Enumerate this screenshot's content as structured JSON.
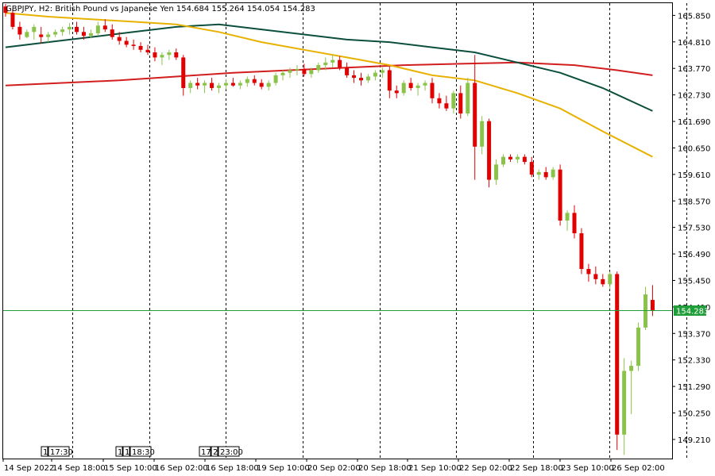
{
  "header": {
    "symbol": "GBPJPY",
    "timeframe": "H2",
    "description": "British Pound vs Japanese Yen",
    "ohlc": "154.684 155.264 154.054 154.283"
  },
  "colors": {
    "bull": "#8bc34a",
    "bear": "#e00000",
    "ma_fast": "#e8b100",
    "ma_mid": "#0b4f3c",
    "ma_slow": "#d21e1e",
    "price_line": "#1f9e3a",
    "grid": "#000000"
  },
  "chart_data": {
    "type": "candlestick",
    "title": "GBPJPY, H2: British Pound vs Japanese Yen",
    "ylim": [
      148.46,
      166.33
    ],
    "y_ticks": [
      165.85,
      164.81,
      163.77,
      162.73,
      161.69,
      160.65,
      159.61,
      158.57,
      157.53,
      156.49,
      155.45,
      154.41,
      153.37,
      152.33,
      151.29,
      150.25,
      149.21
    ],
    "current_price": 154.283,
    "x_ticks": [
      "14 Sep 2022",
      "14 Sep 18:00",
      "15 Sep 10:00",
      "16 Sep 02:00",
      "16 Sep 18:00",
      "19 Sep 10:00",
      "20 Sep 02:00",
      "20 Sep 18:00",
      "21 Sep 10:00",
      "22 Sep 02:00",
      "22 Sep 18:00",
      "23 Sep 10:00",
      "26 Sep 02:00"
    ],
    "session_separators": 12,
    "session_labels": [
      "1",
      "17:30",
      "1",
      "1",
      "18:30",
      "17:",
      "2",
      "23:00"
    ],
    "candles": [
      [
        166.2,
        166.3,
        165.8,
        165.95
      ],
      [
        165.95,
        166.1,
        165.3,
        165.4
      ],
      [
        165.4,
        165.6,
        164.9,
        165.1
      ],
      [
        165.0,
        165.3,
        164.95,
        165.2
      ],
      [
        165.2,
        165.5,
        164.9,
        165.4
      ],
      [
        165.1,
        165.4,
        164.75,
        165.0
      ],
      [
        165.0,
        165.2,
        164.8,
        165.1
      ],
      [
        165.1,
        165.3,
        165.0,
        165.2
      ],
      [
        165.2,
        165.4,
        165.05,
        165.3
      ],
      [
        165.3,
        165.55,
        165.1,
        165.4
      ],
      [
        165.4,
        165.6,
        165.1,
        165.2
      ],
      [
        165.2,
        165.4,
        164.9,
        165.05
      ],
      [
        165.05,
        165.3,
        164.95,
        165.15
      ],
      [
        165.15,
        165.6,
        165.05,
        165.45
      ],
      [
        165.45,
        165.7,
        165.2,
        165.3
      ],
      [
        165.3,
        165.5,
        164.9,
        165.0
      ],
      [
        165.0,
        165.2,
        164.7,
        164.85
      ],
      [
        164.85,
        165.0,
        164.6,
        164.7
      ],
      [
        164.7,
        164.9,
        164.5,
        164.65
      ],
      [
        164.65,
        164.8,
        164.4,
        164.5
      ],
      [
        164.5,
        164.7,
        164.3,
        164.4
      ],
      [
        164.4,
        164.6,
        164.05,
        164.2
      ],
      [
        164.2,
        164.4,
        163.9,
        164.3
      ],
      [
        164.3,
        164.5,
        164.1,
        164.4
      ],
      [
        164.4,
        164.55,
        164.1,
        164.2
      ],
      [
        164.2,
        164.3,
        162.7,
        163.0
      ],
      [
        163.0,
        163.3,
        162.8,
        163.2
      ],
      [
        163.2,
        163.4,
        162.95,
        163.1
      ],
      [
        163.1,
        163.3,
        162.8,
        163.2
      ],
      [
        163.2,
        163.4,
        162.9,
        163.0
      ],
      [
        163.0,
        163.2,
        162.8,
        163.1
      ],
      [
        163.1,
        163.35,
        162.95,
        163.2
      ],
      [
        163.2,
        163.4,
        163.05,
        163.1
      ],
      [
        163.1,
        163.3,
        162.95,
        163.2
      ],
      [
        163.2,
        163.45,
        163.05,
        163.35
      ],
      [
        163.35,
        163.5,
        163.1,
        163.2
      ],
      [
        163.2,
        163.35,
        162.95,
        163.05
      ],
      [
        163.05,
        163.3,
        162.9,
        163.2
      ],
      [
        163.2,
        163.6,
        163.1,
        163.5
      ],
      [
        163.5,
        163.7,
        163.3,
        163.6
      ],
      [
        163.6,
        163.8,
        163.4,
        163.7
      ],
      [
        163.7,
        163.9,
        163.5,
        163.75
      ],
      [
        163.75,
        163.95,
        163.45,
        163.55
      ],
      [
        163.55,
        163.8,
        163.4,
        163.7
      ],
      [
        163.7,
        164.0,
        163.6,
        163.9
      ],
      [
        163.9,
        164.2,
        163.7,
        164.0
      ],
      [
        164.0,
        164.3,
        163.8,
        164.1
      ],
      [
        164.1,
        164.25,
        163.7,
        163.8
      ],
      [
        163.8,
        164.0,
        163.4,
        163.5
      ],
      [
        163.5,
        163.7,
        163.2,
        163.4
      ],
      [
        163.4,
        163.6,
        163.1,
        163.3
      ],
      [
        163.3,
        163.55,
        163.2,
        163.45
      ],
      [
        163.45,
        163.7,
        163.3,
        163.6
      ],
      [
        163.6,
        163.8,
        163.4,
        163.7
      ],
      [
        163.7,
        163.85,
        162.6,
        162.9
      ],
      [
        162.9,
        163.1,
        162.6,
        162.8
      ],
      [
        162.8,
        163.3,
        162.7,
        163.2
      ],
      [
        163.2,
        163.4,
        162.9,
        163.0
      ],
      [
        163.0,
        163.2,
        162.7,
        163.1
      ],
      [
        163.1,
        163.3,
        162.9,
        163.2
      ],
      [
        163.2,
        163.4,
        162.4,
        162.6
      ],
      [
        162.6,
        162.8,
        162.2,
        162.4
      ],
      [
        162.4,
        162.7,
        162.1,
        162.2
      ],
      [
        162.2,
        162.9,
        162.0,
        162.8
      ],
      [
        162.8,
        163.1,
        161.8,
        162.0
      ],
      [
        162.0,
        163.4,
        161.9,
        163.2
      ],
      [
        163.2,
        164.3,
        159.4,
        160.7
      ],
      [
        160.7,
        161.9,
        160.4,
        161.7
      ],
      [
        161.7,
        161.8,
        159.1,
        159.4
      ],
      [
        159.4,
        160.2,
        159.2,
        160.0
      ],
      [
        160.0,
        160.4,
        159.9,
        160.3
      ],
      [
        160.3,
        160.4,
        160.1,
        160.2
      ],
      [
        160.2,
        160.4,
        160.05,
        160.3
      ],
      [
        160.3,
        160.4,
        160.0,
        160.1
      ],
      [
        160.1,
        160.3,
        159.5,
        159.6
      ],
      [
        159.6,
        159.8,
        159.4,
        159.7
      ],
      [
        159.7,
        159.9,
        159.4,
        159.5
      ],
      [
        159.5,
        159.9,
        159.4,
        159.8
      ],
      [
        159.8,
        160.0,
        157.6,
        157.8
      ],
      [
        157.8,
        158.2,
        157.4,
        158.1
      ],
      [
        158.1,
        158.4,
        157.1,
        157.3
      ],
      [
        157.3,
        157.5,
        155.7,
        155.9
      ],
      [
        155.9,
        156.1,
        155.4,
        155.7
      ],
      [
        155.7,
        156.0,
        155.3,
        155.5
      ],
      [
        155.5,
        155.7,
        155.2,
        155.3
      ],
      [
        155.3,
        155.8,
        155.1,
        155.7
      ],
      [
        155.7,
        155.8,
        148.8,
        149.4
      ],
      [
        149.4,
        152.4,
        148.6,
        151.9
      ],
      [
        151.9,
        152.3,
        150.2,
        152.1
      ],
      [
        152.1,
        153.8,
        151.9,
        153.6
      ],
      [
        153.6,
        155.2,
        153.5,
        154.9
      ],
      [
        154.684,
        155.264,
        154.054,
        154.283
      ]
    ],
    "ma_fast": [
      [
        0,
        165.95
      ],
      [
        6,
        165.8
      ],
      [
        12,
        165.7
      ],
      [
        18,
        165.6
      ],
      [
        24,
        165.5
      ],
      [
        30,
        165.2
      ],
      [
        36,
        164.8
      ],
      [
        42,
        164.5
      ],
      [
        48,
        164.2
      ],
      [
        54,
        163.9
      ],
      [
        60,
        163.5
      ],
      [
        66,
        163.3
      ],
      [
        72,
        162.8
      ],
      [
        78,
        162.2
      ],
      [
        84,
        161.3
      ],
      [
        91,
        160.3
      ]
    ],
    "ma_mid": [
      [
        0,
        164.6
      ],
      [
        6,
        164.8
      ],
      [
        12,
        165.0
      ],
      [
        18,
        165.2
      ],
      [
        24,
        165.4
      ],
      [
        30,
        165.5
      ],
      [
        36,
        165.3
      ],
      [
        42,
        165.1
      ],
      [
        48,
        164.9
      ],
      [
        54,
        164.8
      ],
      [
        60,
        164.6
      ],
      [
        66,
        164.4
      ],
      [
        72,
        164.0
      ],
      [
        78,
        163.6
      ],
      [
        84,
        163.0
      ],
      [
        91,
        162.1
      ]
    ],
    "ma_slow": [
      [
        0,
        163.1
      ],
      [
        8,
        163.2
      ],
      [
        16,
        163.3
      ],
      [
        24,
        163.45
      ],
      [
        32,
        163.6
      ],
      [
        40,
        163.7
      ],
      [
        48,
        163.8
      ],
      [
        56,
        163.9
      ],
      [
        64,
        163.95
      ],
      [
        72,
        164.0
      ],
      [
        80,
        163.9
      ],
      [
        86,
        163.7
      ],
      [
        91,
        163.5
      ]
    ]
  }
}
